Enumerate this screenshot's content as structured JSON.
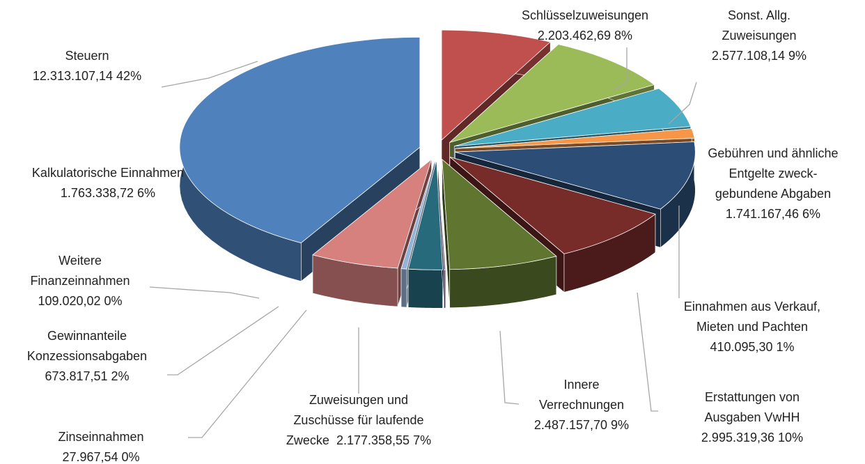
{
  "chart_data": {
    "type": "pie3d",
    "categories": [
      "Steuern",
      "Schlüsselzuweisungen",
      "Sonst. Allg. Zuweisungen",
      "Gebühren und ähnliche Entgelte zweck-gebundene Abgaben",
      "Einnahmen aus Verkauf, Mieten und Pachten",
      "Erstattungen von Ausgaben VwHH",
      "Innere Verrechnungen",
      "Zuweisungen und Zuschüsse für laufende Zwecke",
      "Zinseinnahmen",
      "Gewinnanteile Konzessionsabgaben",
      "Weitere Finanzeinnahmen",
      "Kalkulatorische Einnahmen"
    ],
    "values": [
      12313107.14,
      2203462.69,
      2577108.14,
      1741167.46,
      410095.3,
      2995319.36,
      2487157.7,
      2177358.55,
      27967.54,
      673817.51,
      109020.02,
      1763338.72
    ],
    "value_labels": [
      "12.313.107,14",
      "2.203.462,69",
      "2.577.108,14",
      "1.741.167,46",
      "410.095,30",
      "2.995.319,36",
      "2.487.157,70",
      "2.177.358,55",
      "27.967,54",
      "673.817,51",
      "109.020,02",
      "1.763.338,72"
    ],
    "percent_labels": [
      "42%",
      "8%",
      "9%",
      "6%",
      "1%",
      "10%",
      "9%",
      "7%",
      "0%",
      "2%",
      "0%",
      "6%"
    ],
    "colors": [
      "#4f81bd",
      "#c0504d",
      "#9bbb59",
      "#4bacc6",
      "#f79646",
      "#2c4d75",
      "#772c2a",
      "#5f7530",
      "#4d3b62",
      "#276a7c",
      "#95b3d7",
      "#d7817f"
    ]
  }
}
